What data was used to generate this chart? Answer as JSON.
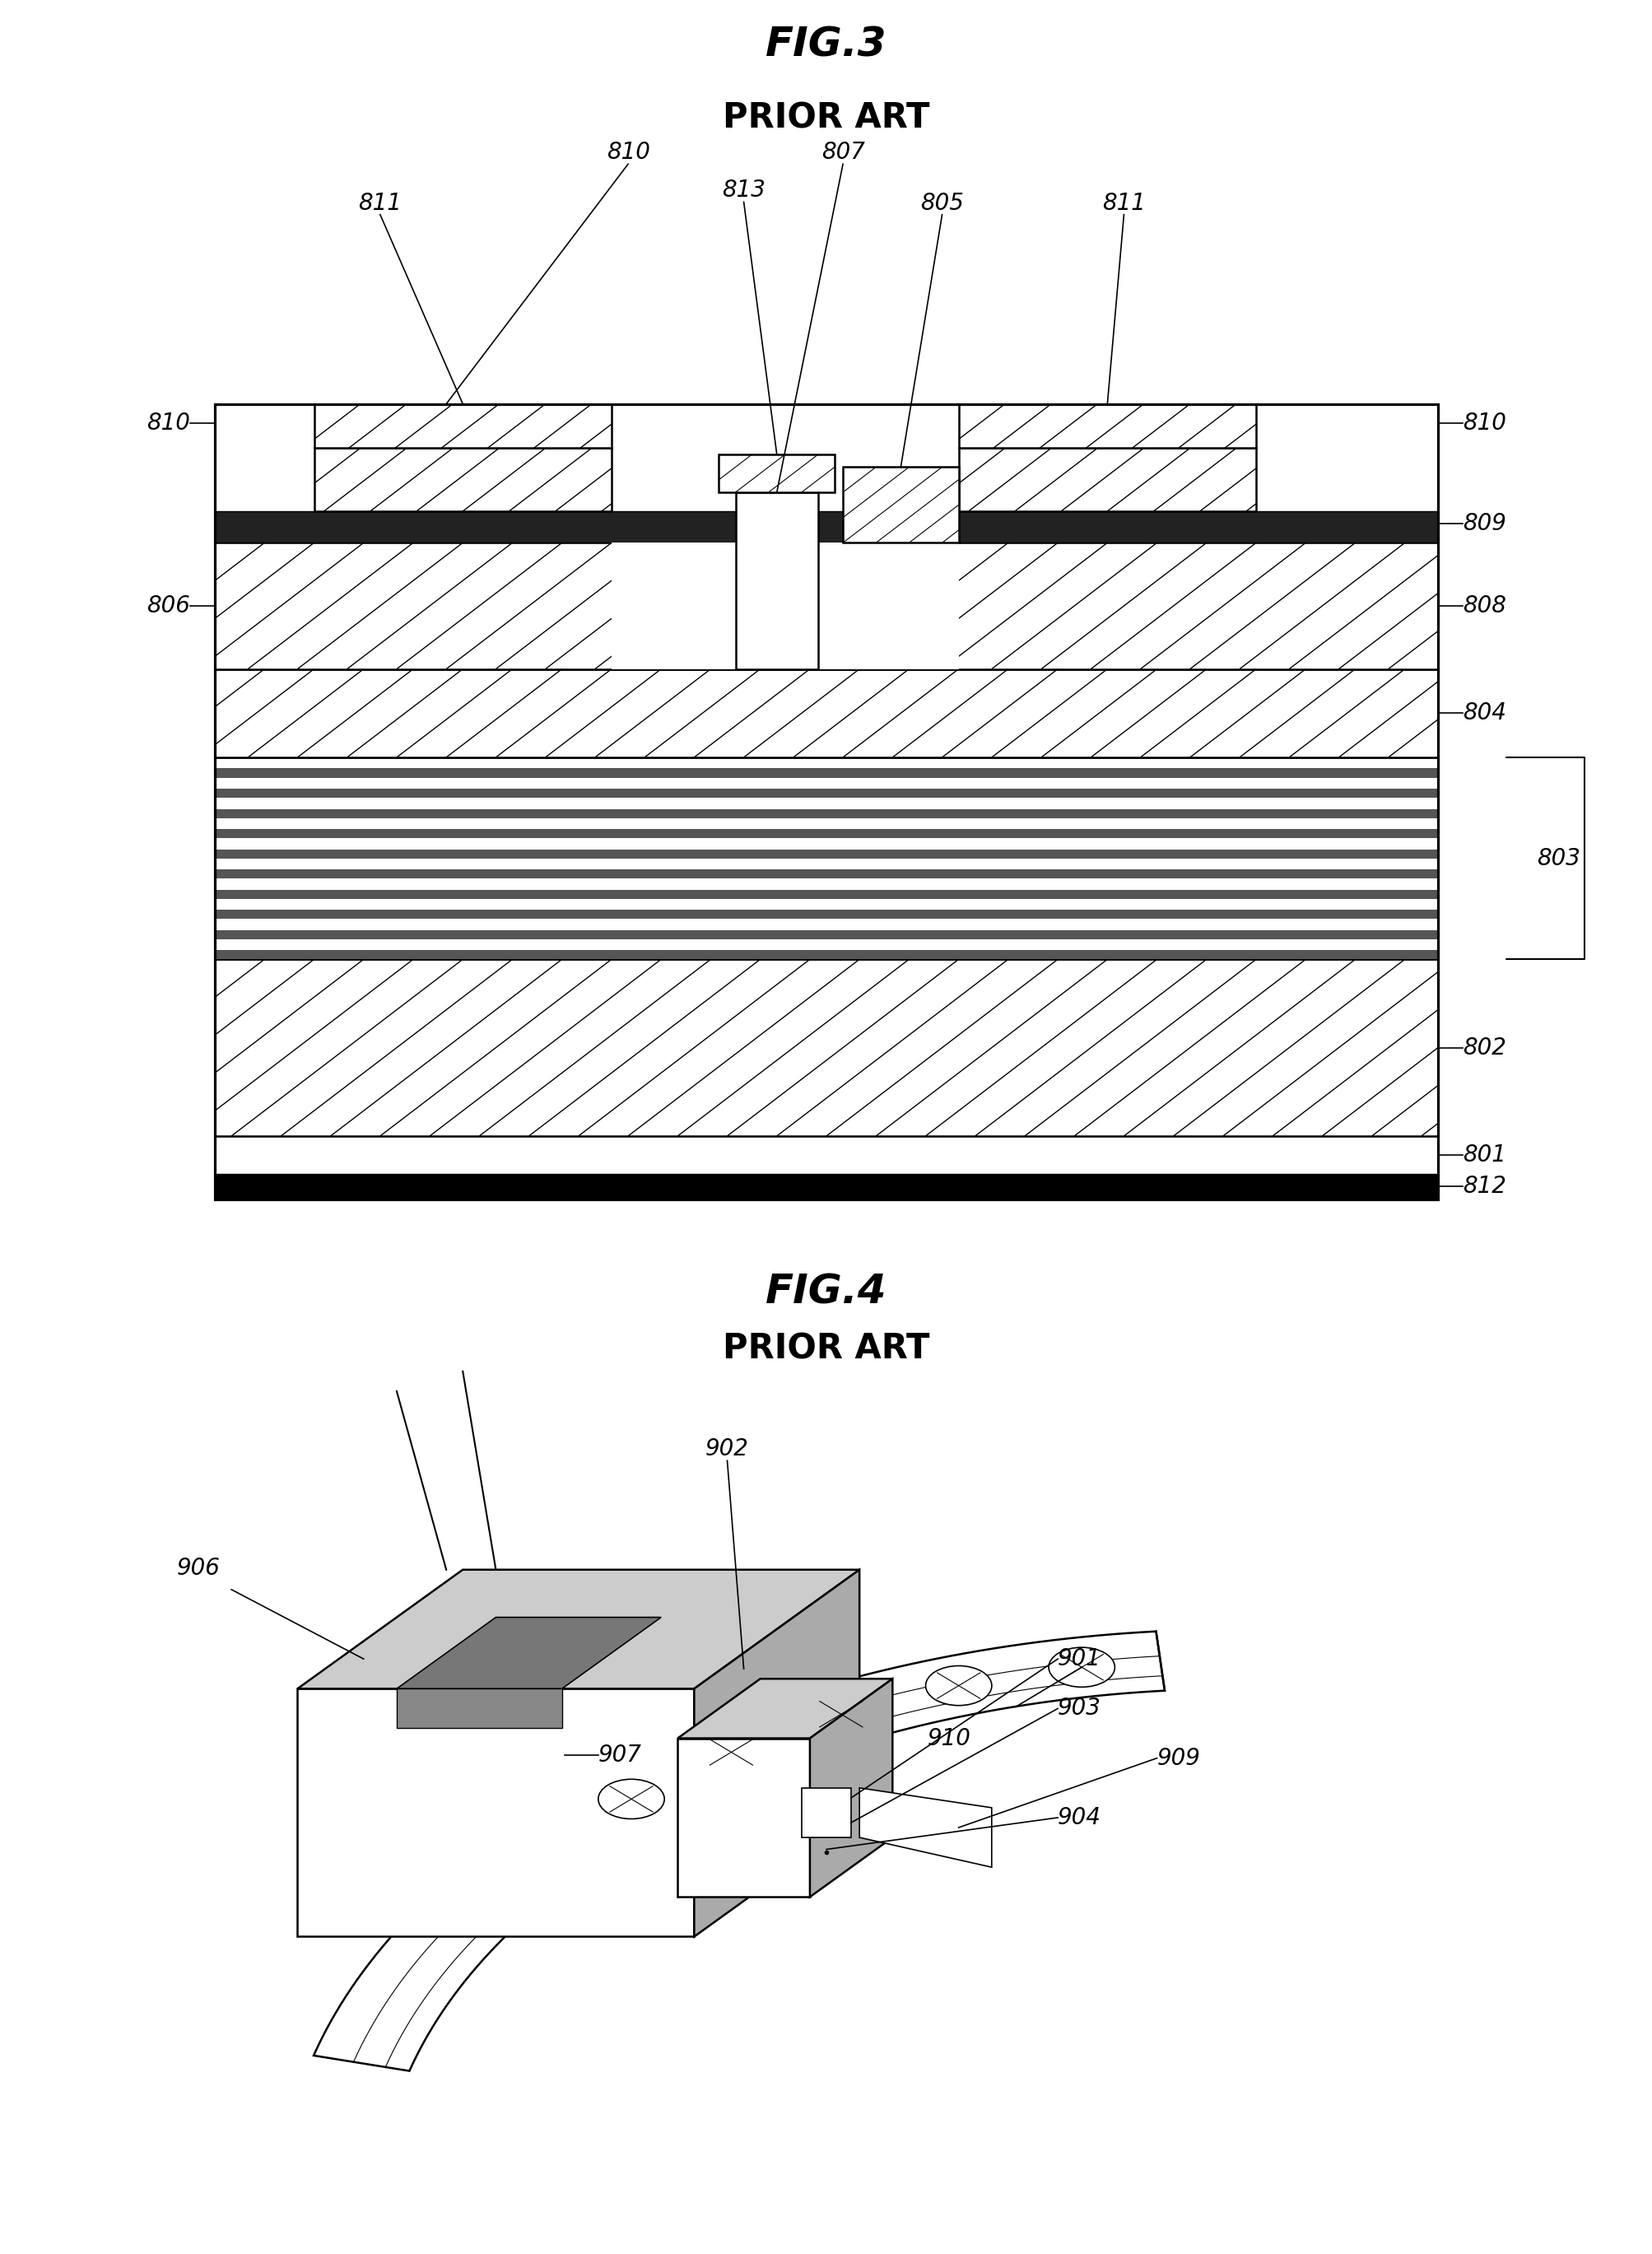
{
  "fig3_title": "FIG.3",
  "fig3_subtitle": "PRIOR ART",
  "fig4_title": "FIG.4",
  "fig4_subtitle": "PRIOR ART",
  "background_color": "#ffffff",
  "line_color": "#000000",
  "title_fontsize": 36,
  "subtitle_fontsize": 30,
  "label_fontsize": 20,
  "lw_main": 1.8
}
